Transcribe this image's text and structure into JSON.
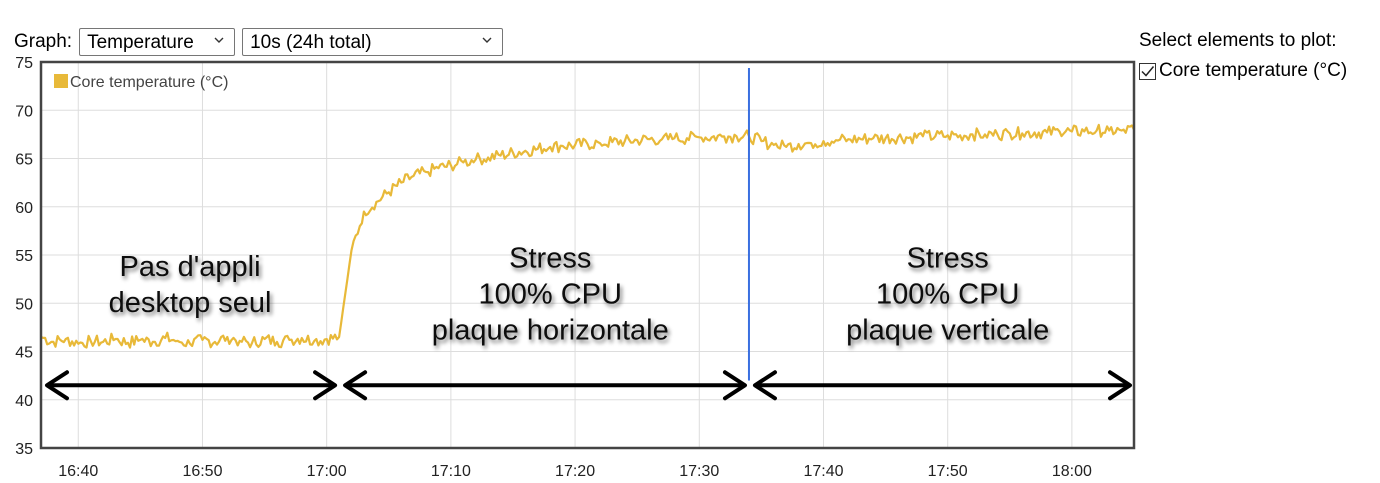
{
  "toolbar": {
    "graph_label": "Graph:",
    "graph_select_value": "Temperature",
    "range_select_value": "10s (24h total)"
  },
  "side_panel": {
    "title": "Select elements to plot:",
    "elements": [
      {
        "label": "Core temperature (°C)",
        "checked": true
      }
    ]
  },
  "colors": {
    "series": "#e8b939",
    "marker": "#3a6fe0",
    "arrow": "#000000",
    "frame": "#444444",
    "grid": "#dddddd"
  },
  "icons": {
    "select_chevron": "chevron-down-icon",
    "checkbox": "checkmark-icon"
  },
  "chart_data": {
    "type": "line",
    "title": "",
    "xlabel": "",
    "ylabel": "",
    "ylim": [
      35,
      75
    ],
    "y_ticks": [
      "35",
      "40",
      "45",
      "50",
      "55",
      "60",
      "65",
      "70",
      "75"
    ],
    "xlim": [
      "16:37",
      "18:05"
    ],
    "x_ticks": [
      "16:40",
      "16:50",
      "17:00",
      "17:10",
      "17:20",
      "17:30",
      "17:40",
      "17:50",
      "18:00"
    ],
    "grid": true,
    "legend_placement": "top-left",
    "series": [
      {
        "name": "Core temperature (°C)",
        "x": [
          "16:37",
          "16:38",
          "16:39",
          "16:40",
          "16:41",
          "16:42",
          "16:43",
          "16:44",
          "16:45",
          "16:46",
          "16:47",
          "16:48",
          "16:49",
          "16:50",
          "16:51",
          "16:52",
          "16:53",
          "16:54",
          "16:55",
          "16:56",
          "16:57",
          "16:58",
          "16:59",
          "17:00",
          "17:01",
          "17:02",
          "17:03",
          "17:04",
          "17:05",
          "17:06",
          "17:07",
          "17:08",
          "17:09",
          "17:10",
          "17:11",
          "17:12",
          "17:13",
          "17:14",
          "17:15",
          "17:16",
          "17:17",
          "17:18",
          "17:19",
          "17:20",
          "17:21",
          "17:22",
          "17:23",
          "17:24",
          "17:25",
          "17:26",
          "17:27",
          "17:28",
          "17:29",
          "17:30",
          "17:31",
          "17:32",
          "17:33",
          "17:34",
          "17:35",
          "17:36",
          "17:37",
          "17:38",
          "17:39",
          "17:40",
          "17:41",
          "17:42",
          "17:43",
          "17:44",
          "17:45",
          "17:46",
          "17:47",
          "17:48",
          "17:49",
          "17:50",
          "17:51",
          "17:52",
          "17:53",
          "17:54",
          "17:55",
          "17:56",
          "17:57",
          "17:58",
          "17:59",
          "18:00",
          "18:01",
          "18:02",
          "18:03",
          "18:04",
          "18:05"
        ],
        "values": [
          46.5,
          46.0,
          46.3,
          45.8,
          46.1,
          46.0,
          46.3,
          45.9,
          46.2,
          46.0,
          46.4,
          46.1,
          45.8,
          46.2,
          46.0,
          46.5,
          46.1,
          45.9,
          46.3,
          46.0,
          46.2,
          46.4,
          46.1,
          46.3,
          46.5,
          55.5,
          59.5,
          60.5,
          61.5,
          62.5,
          63.2,
          63.6,
          64.0,
          64.3,
          64.6,
          64.9,
          65.1,
          65.3,
          65.6,
          65.8,
          66.0,
          66.2,
          66.3,
          66.4,
          66.5,
          66.6,
          66.7,
          66.8,
          66.9,
          67.0,
          67.0,
          67.1,
          67.1,
          67.2,
          67.2,
          67.3,
          67.3,
          67.3,
          66.8,
          66.4,
          66.2,
          66.5,
          66.6,
          66.8,
          66.9,
          67.0,
          67.0,
          67.1,
          67.1,
          67.2,
          67.2,
          67.3,
          67.3,
          67.4,
          67.4,
          67.5,
          67.5,
          67.5,
          67.6,
          67.6,
          67.7,
          67.7,
          67.8,
          67.8,
          67.8,
          67.9,
          67.9,
          67.9,
          68.0
        ]
      }
    ],
    "vertical_marker": {
      "x": "17:34"
    },
    "annotations": [
      {
        "lines": [
          "Pas d'appli",
          "desktop seul"
        ],
        "x": "16:49",
        "y": 52.0
      },
      {
        "lines": [
          "Stress",
          "100% CPU",
          "plaque horizontale"
        ],
        "x": "17:18",
        "y": 51.0
      },
      {
        "lines": [
          "Stress",
          "100% CPU",
          "plaque verticale"
        ],
        "x": "17:50",
        "y": 51.0
      }
    ],
    "arrows": [
      {
        "from": "16:37",
        "to": "17:01",
        "y": 41.5
      },
      {
        "from": "17:01",
        "to": "17:34",
        "y": 41.5
      },
      {
        "from": "17:34",
        "to": "18:05",
        "y": 41.5
      }
    ]
  }
}
